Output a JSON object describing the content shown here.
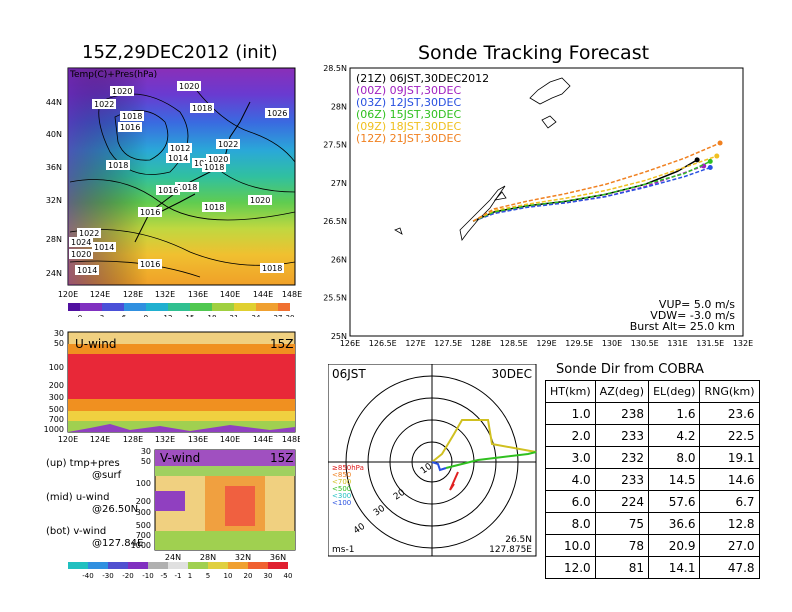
{
  "map_panel": {
    "title": "15Z,29DEC2012 (init)",
    "legend_label": "Temp(C)+Pres(hPa)",
    "lat_ticks": [
      "44N",
      "40N",
      "36N",
      "32N",
      "28N",
      "24N"
    ],
    "lon_ticks": [
      "120E",
      "124E",
      "128E",
      "132E",
      "136E",
      "140E",
      "144E",
      "148E"
    ],
    "isobar_labels": [
      "1020",
      "1020",
      "1022",
      "1018",
      "1018",
      "1016",
      "1026",
      "1012",
      "1014",
      "1016",
      "1022",
      "1020",
      "1018",
      "1018",
      "1018",
      "1016",
      "1018",
      "1020",
      "1016",
      "1022",
      "1024",
      "1014",
      "1020",
      "1016",
      "1014",
      "1018"
    ],
    "colorbar_ticks": [
      "0",
      "3",
      "6",
      "9",
      "12",
      "15",
      "18",
      "21",
      "24",
      "27",
      "30"
    ]
  },
  "uwind_panel": {
    "label": "U-wind",
    "time": "15Z",
    "y_ticks": [
      "30",
      "50",
      "100",
      "200",
      "300",
      "500",
      "700",
      "1000"
    ],
    "x_ticks": [
      "120E",
      "124E",
      "128E",
      "132E",
      "136E",
      "140E",
      "144E",
      "148E"
    ]
  },
  "vwind_panel": {
    "label": "V-wind",
    "time": "15Z",
    "y_ticks": [
      "30",
      "50",
      "100",
      "200",
      "300",
      "500",
      "700",
      "1000"
    ],
    "x_ticks": [
      "24N",
      "28N",
      "32N",
      "36N"
    ],
    "colorbar_ticks": [
      "-40",
      "-30",
      "-20",
      "-10",
      "-5",
      "-1",
      "1",
      "5",
      "10",
      "20",
      "30",
      "40"
    ]
  },
  "notes": {
    "line1": "(up) tmp+pres",
    "line1b": "@surf",
    "line2": "(mid) u-wind",
    "line2b": "@26.50N",
    "line3": "(bot) v-wind",
    "line3b": "@127.84E"
  },
  "tracking_panel": {
    "title": "Sonde Tracking Forecast",
    "lat_ticks": [
      "28.5N",
      "28N",
      "27.5N",
      "27N",
      "26.5N",
      "26N",
      "25.5N",
      "25N"
    ],
    "lon_ticks": [
      "126E",
      "126.5E",
      "127E",
      "127.5E",
      "128E",
      "128.5E",
      "129E",
      "129.5E",
      "130E",
      "130.5E",
      "131E",
      "131.5E",
      "132E"
    ],
    "legend": [
      {
        "text": "(21Z) 06JST,30DEC2012",
        "color": "#000000"
      },
      {
        "text": "(00Z) 09JST,30DEC",
        "color": "#a020c0"
      },
      {
        "text": "(03Z) 12JST,30DEC",
        "color": "#2850e0"
      },
      {
        "text": "(06Z) 15JST,30DEC",
        "color": "#30c020"
      },
      {
        "text": "(09Z) 18JST,30DEC",
        "color": "#f0c020"
      },
      {
        "text": "(12Z) 21JST,30DEC",
        "color": "#f08020"
      }
    ],
    "vup": "VUP=  5.0 m/s",
    "vdw": "VDW= -3.0 m/s",
    "burst": "Burst Alt= 25.0 km"
  },
  "polar_panel": {
    "time": "06JST",
    "date": "30DEC",
    "ring_labels": [
      "10",
      "20",
      "30",
      "40"
    ],
    "pressure_legend": [
      {
        "text": "≥850hPa",
        "color": "#e02020"
      },
      {
        "text": "<850",
        "color": "#f08020"
      },
      {
        "text": "<700",
        "color": "#d0c020"
      },
      {
        "text": "<500",
        "color": "#30c020"
      },
      {
        "text": "<300",
        "color": "#20c0c0"
      },
      {
        "text": "<100",
        "color": "#2850e0"
      }
    ],
    "units": "ms-1",
    "pos_lat": "26.5N",
    "pos_lon": "127.875E"
  },
  "sonde_table": {
    "title": "Sonde Dir from COBRA",
    "headers": [
      "HT(km)",
      "AZ(deg)",
      "EL(deg)",
      "RNG(km)"
    ],
    "rows": [
      [
        "1.0",
        "238",
        "1.6",
        "23.6"
      ],
      [
        "2.0",
        "233",
        "4.2",
        "22.5"
      ],
      [
        "3.0",
        "232",
        "8.0",
        "19.1"
      ],
      [
        "4.0",
        "233",
        "14.5",
        "14.6"
      ],
      [
        "6.0",
        "224",
        "57.6",
        "6.7"
      ],
      [
        "8.0",
        "75",
        "36.6",
        "12.8"
      ],
      [
        "10.0",
        "78",
        "20.9",
        "27.0"
      ],
      [
        "12.0",
        "81",
        "14.1",
        "47.8"
      ]
    ]
  },
  "chart_data": {
    "type": "line",
    "title": "Sonde Tracking Forecast",
    "xlim": [
      126,
      132
    ],
    "ylim": [
      25,
      28.5
    ],
    "series": [
      {
        "name": "(21Z) 06JST,30DEC2012",
        "x": [
          127.88,
          128.2,
          128.7,
          129.3,
          129.9,
          130.5,
          131.0,
          131.3
        ],
        "y": [
          26.5,
          26.62,
          26.7,
          26.76,
          26.85,
          26.98,
          27.15,
          27.3
        ]
      },
      {
        "name": "(00Z) 09JST,30DEC",
        "x": [
          127.88,
          128.2,
          128.7,
          129.3,
          129.9,
          130.5,
          131.0,
          131.4
        ],
        "y": [
          26.5,
          26.6,
          26.69,
          26.74,
          26.82,
          26.95,
          27.1,
          27.22
        ]
      },
      {
        "name": "(03Z) 12JST,30DEC",
        "x": [
          127.88,
          128.2,
          128.7,
          129.3,
          129.9,
          130.5,
          131.1,
          131.5
        ],
        "y": [
          26.5,
          26.6,
          26.68,
          26.74,
          26.82,
          26.94,
          27.08,
          27.2
        ]
      },
      {
        "name": "(06Z) 15JST,30DEC",
        "x": [
          127.88,
          128.2,
          128.7,
          129.3,
          129.9,
          130.5,
          131.1,
          131.5
        ],
        "y": [
          26.5,
          26.62,
          26.7,
          26.76,
          26.85,
          26.98,
          27.12,
          27.28
        ]
      },
      {
        "name": "(09Z) 18JST,30DEC",
        "x": [
          127.88,
          128.2,
          128.7,
          129.3,
          129.9,
          130.5,
          131.1,
          131.6
        ],
        "y": [
          26.5,
          26.64,
          26.72,
          26.8,
          26.9,
          27.03,
          27.2,
          27.35
        ]
      },
      {
        "name": "(12Z) 21JST,30DEC",
        "x": [
          127.88,
          128.2,
          128.7,
          129.3,
          129.9,
          130.5,
          131.1,
          131.65
        ],
        "y": [
          26.5,
          26.66,
          26.76,
          26.86,
          26.98,
          27.14,
          27.32,
          27.52
        ]
      }
    ]
  }
}
